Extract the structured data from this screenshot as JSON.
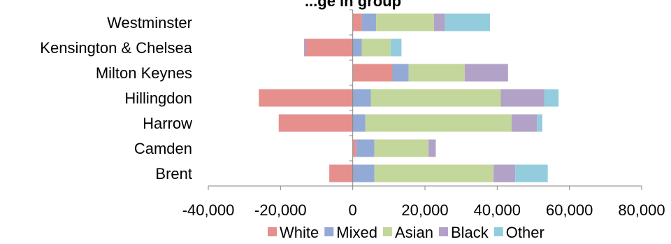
{
  "chart_data": {
    "type": "bar",
    "orientation": "horizontal",
    "stacked": true,
    "title": "...ge in group",
    "categories": [
      "Westminster",
      "Kensington & Chelsea",
      "Milton Keynes",
      "Hillingdon",
      "Harrow",
      "Camden",
      "Brent"
    ],
    "series": [
      {
        "name": "White",
        "color": "#E6908E",
        "values": [
          2500,
          -13000,
          11000,
          -26000,
          -20500,
          1000,
          -6500
        ]
      },
      {
        "name": "Mixed",
        "color": "#93AAD6",
        "values": [
          4000,
          2500,
          4500,
          5000,
          3500,
          5000,
          6000
        ]
      },
      {
        "name": "Asian",
        "color": "#C3D69B",
        "values": [
          16000,
          8000,
          15500,
          36000,
          40500,
          15000,
          33000
        ]
      },
      {
        "name": "Black",
        "color": "#B3A2C7",
        "values": [
          3000,
          -500,
          12000,
          12000,
          7000,
          2000,
          6000
        ]
      },
      {
        "name": "Other",
        "color": "#93CDDD",
        "values": [
          12500,
          3000,
          0,
          4000,
          1500,
          0,
          9000
        ]
      }
    ],
    "xlim": [
      -40000,
      80000
    ],
    "xticks": [
      "-40,000",
      "-20,000",
      "0",
      "20,000",
      "40,000",
      "60,000",
      "80,000"
    ],
    "xtick_values": [
      -40000,
      -20000,
      0,
      20000,
      40000,
      60000,
      80000
    ],
    "grid": false,
    "legend_position": "bottom"
  }
}
